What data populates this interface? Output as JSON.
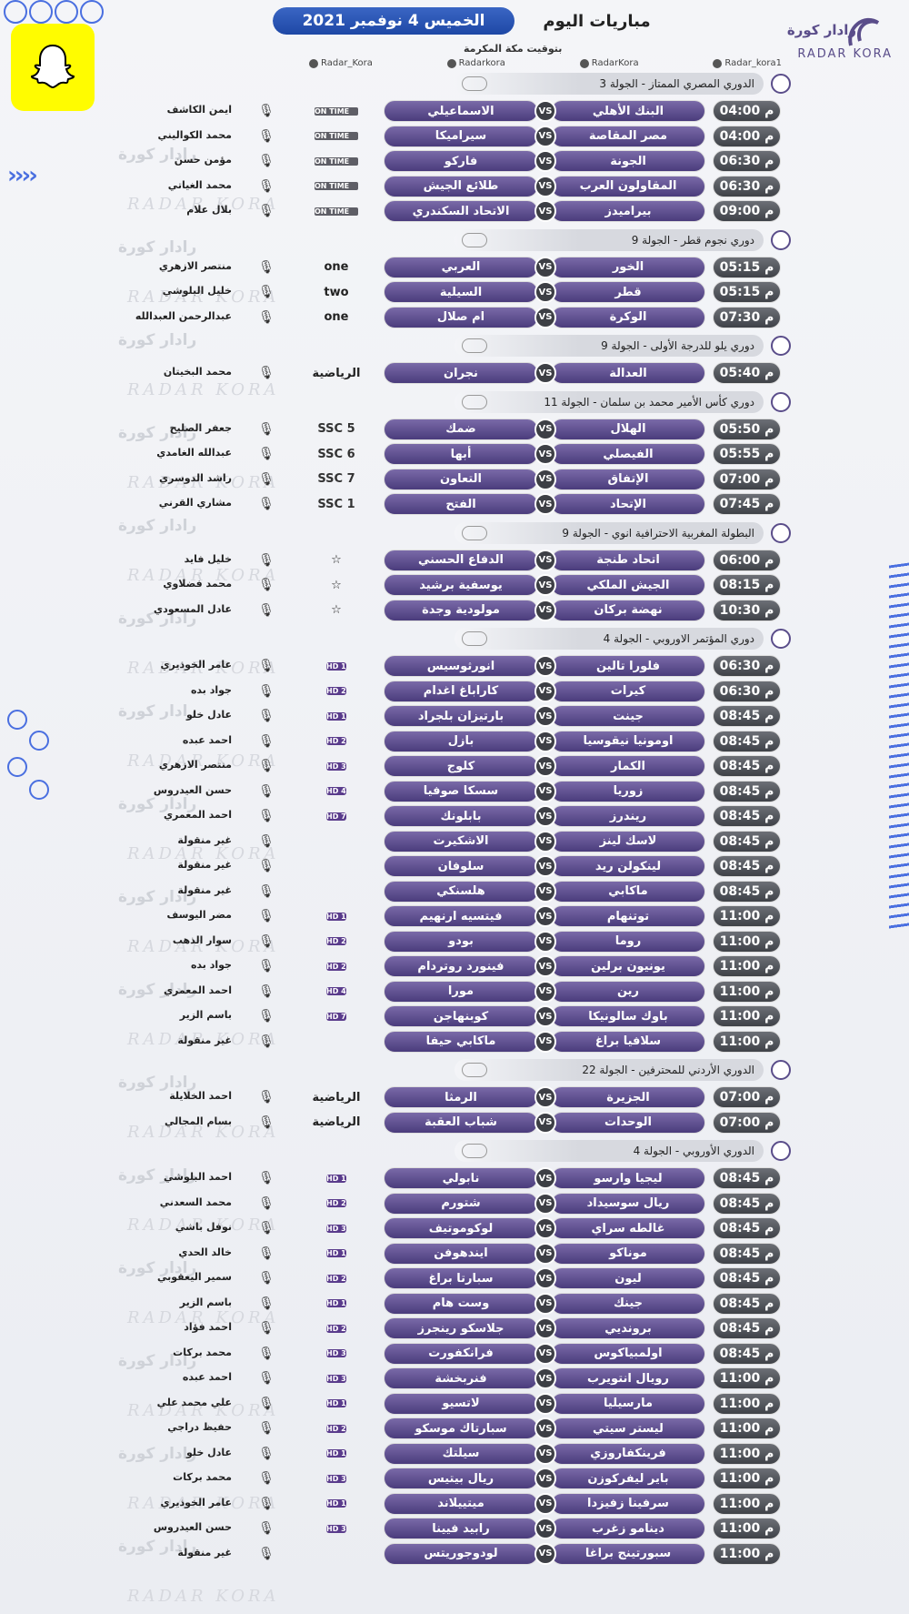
{
  "header": {
    "today": "مباريات اليوم",
    "date": "الخميس 4 نوفمبر 2021",
    "subtitle": "بتوقيت مكة المكرمة"
  },
  "logo": {
    "ar": "رادار كورة",
    "en": "RADAR KORA"
  },
  "watermark": {
    "ar": "رادار كورة",
    "en": "RADAR KORA"
  },
  "socials": [
    "Radar_Kora",
    "Radarkora",
    "RadarKora",
    "Radar_kora1"
  ],
  "vs": "VS",
  "leagues": [
    {
      "name": "الدوري المصري الممتاز - الجولة 3",
      "matches": [
        {
          "time": "04:00 م",
          "home": "البنك الأهلي",
          "away": "الاسماعيلي",
          "channel": "ON TIME",
          "type": "ontime",
          "comm": "ايمن الكاشف"
        },
        {
          "time": "04:00 م",
          "home": "مصر المقاصة",
          "away": "سيراميكا",
          "channel": "ON TIME",
          "type": "ontime",
          "comm": "محمد الكواليني"
        },
        {
          "time": "06:30 م",
          "home": "الجونة",
          "away": "فاركو",
          "channel": "ON TIME",
          "type": "ontime",
          "comm": "مؤمن حسن"
        },
        {
          "time": "06:30 م",
          "home": "المقاولون العرب",
          "away": "طلائع الجيش",
          "channel": "ON TIME",
          "type": "ontime",
          "comm": "محمد الغياتي"
        },
        {
          "time": "09:00 م",
          "home": "بيراميدز",
          "away": "الاتحاد السكندري",
          "channel": "ON TIME",
          "type": "ontime",
          "comm": "بلال علام"
        }
      ]
    },
    {
      "name": "دوري نجوم قطر - الجولة 9",
      "matches": [
        {
          "time": "05:15 م",
          "home": "الخور",
          "away": "العربي",
          "channel": "one",
          "type": "ad",
          "comm": "منتصر الازهري"
        },
        {
          "time": "05:15 م",
          "home": "قطر",
          "away": "السيلية",
          "channel": "two",
          "type": "ad",
          "comm": "خليل البلوشي"
        },
        {
          "time": "07:30 م",
          "home": "الوكرة",
          "away": "ام صلال",
          "channel": "one",
          "type": "ad",
          "comm": "عبدالرحمن العبدالله"
        }
      ]
    },
    {
      "name": "دوري يلو للدرجة الأولى - الجولة 9",
      "matches": [
        {
          "time": "05:40 م",
          "home": "العدالة",
          "away": "نجران",
          "channel": "الرياضية",
          "type": "ad",
          "comm": "محمد البخيتان"
        }
      ]
    },
    {
      "name": "دوري كأس الأمير محمد بن سلمان - الجولة 11",
      "matches": [
        {
          "time": "05:50 م",
          "home": "الهلال",
          "away": "ضمك",
          "channel": "SSC 5",
          "type": "ssc",
          "comm": "جعفر الصليح"
        },
        {
          "time": "05:55 م",
          "home": "الفيصلي",
          "away": "أبها",
          "channel": "SSC 6",
          "type": "ssc",
          "comm": "عبدالله الغامدي"
        },
        {
          "time": "07:00 م",
          "home": "الإتفاق",
          "away": "التعاون",
          "channel": "SSC 7",
          "type": "ssc",
          "comm": "راشد الدوسري"
        },
        {
          "time": "07:45 م",
          "home": "الإتحاد",
          "away": "الفتح",
          "channel": "SSC 1",
          "type": "ssc",
          "comm": "مشاري القرني"
        }
      ]
    },
    {
      "name": "البطولة المغربية الاحترافية انوي - الجولة 9",
      "matches": [
        {
          "time": "06:00 م",
          "home": "اتحاد طنجة",
          "away": "الدفاع الحسني",
          "channel": "☆",
          "type": "ad",
          "comm": "خليل فايد"
        },
        {
          "time": "08:15 م",
          "home": "الجيش الملكي",
          "away": "يوسفية برشيد",
          "channel": "☆",
          "type": "ad",
          "comm": "محمد فضلاوي"
        },
        {
          "time": "10:30 م",
          "home": "نهضة بركان",
          "away": "مولودية وجدة",
          "channel": "☆",
          "type": "ad",
          "comm": "عادل المسعودي"
        }
      ]
    },
    {
      "name": "دوري المؤتمر الاوروبي - الجولة 4",
      "matches": [
        {
          "time": "06:30 م",
          "home": "فلورا تالين",
          "away": "انورثوسيس",
          "channel": "HD 1",
          "type": "bein",
          "comm": "عامر الخوذيري"
        },
        {
          "time": "06:30 م",
          "home": "كيرات",
          "away": "كاراباغ اغدام",
          "channel": "HD 2",
          "type": "bein",
          "comm": "جواد بده"
        },
        {
          "time": "08:45 م",
          "home": "جينت",
          "away": "بارتيزان بلجراد",
          "channel": "HD 1",
          "type": "bein",
          "comm": "عادل خلو"
        },
        {
          "time": "08:45 م",
          "home": "اومونيا نيقوسيا",
          "away": "بازل",
          "channel": "HD 2",
          "type": "bein",
          "comm": "احمد عبده"
        },
        {
          "time": "08:45 م",
          "home": "الكمار",
          "away": "كلوج",
          "channel": "HD 3",
          "type": "bein",
          "comm": "منتصر الازهري"
        },
        {
          "time": "08:45 م",
          "home": "زوريا",
          "away": "سسكا صوفيا",
          "channel": "HD 4",
          "type": "bein",
          "comm": "حسن العيدروس"
        },
        {
          "time": "08:45 م",
          "home": "ريندرز",
          "away": "بابلونك",
          "channel": "HD 7",
          "type": "bein",
          "comm": "احمد المعمري"
        },
        {
          "time": "08:45 م",
          "home": "لاسك لينز",
          "away": "الاشكيرت",
          "channel": "",
          "type": "none",
          "comm": "غير منقولة"
        },
        {
          "time": "08:45 م",
          "home": "لينكولن ريد",
          "away": "سلوفان",
          "channel": "",
          "type": "none",
          "comm": "غير منقولة"
        },
        {
          "time": "08:45 م",
          "home": "ماكابي",
          "away": "هلسنكي",
          "channel": "",
          "type": "none",
          "comm": "غير منقولة"
        },
        {
          "time": "11:00 م",
          "home": "توتنهام",
          "away": "فيتسيه ارنهيم",
          "channel": "HD 1",
          "type": "bein",
          "comm": "مضر اليوسف"
        },
        {
          "time": "11:00 م",
          "home": "روما",
          "away": "بودو",
          "channel": "HD 2",
          "type": "bein",
          "comm": "سوار الذهب"
        },
        {
          "time": "11:00 م",
          "home": "يونيون برلين",
          "away": "فينورد روتردام",
          "channel": "HD 2",
          "type": "bein",
          "comm": "جواد بده"
        },
        {
          "time": "11:00 م",
          "home": "رين",
          "away": "مورا",
          "channel": "HD 4",
          "type": "bein",
          "comm": "احمد المعمري"
        },
        {
          "time": "11:00 م",
          "home": "باوك سالونيكا",
          "away": "كوبنهاجن",
          "channel": "HD 7",
          "type": "bein",
          "comm": "باسم الزير"
        },
        {
          "time": "11:00 م",
          "home": "سلافيا براغ",
          "away": "ماكابي حيفا",
          "channel": "",
          "type": "none",
          "comm": "غير منقولة"
        }
      ]
    },
    {
      "name": "الدوري الأردني للمحترفين - الجولة 22",
      "matches": [
        {
          "time": "07:00 م",
          "home": "الجزيرة",
          "away": "الرمثا",
          "channel": "الرياضية",
          "type": "ad",
          "comm": "احمد الخلايلة"
        },
        {
          "time": "07:00 م",
          "home": "الوحدات",
          "away": "شباب العقبة",
          "channel": "الرياضية",
          "type": "ad",
          "comm": "بسام المجالي"
        }
      ]
    },
    {
      "name": "الدوري الأوروبي - الجولة 4",
      "matches": [
        {
          "time": "08:45 م",
          "home": "ليجيا وارسو",
          "away": "نابولي",
          "channel": "HD 1",
          "type": "bein",
          "comm": "احمد البلوشي"
        },
        {
          "time": "08:45 م",
          "home": "ريال سوسيداد",
          "away": "شتورم",
          "channel": "HD 2",
          "type": "bein",
          "comm": "محمد السعدني"
        },
        {
          "time": "08:45 م",
          "home": "غالطه سراي",
          "away": "لوكوموتيف",
          "channel": "HD 3",
          "type": "bein",
          "comm": "نوفل باشي"
        },
        {
          "time": "08:45 م",
          "home": "موناكو",
          "away": "ايندهوفن",
          "channel": "HD 1",
          "type": "bein",
          "comm": "خالد الحدي"
        },
        {
          "time": "08:45 م",
          "home": "ليون",
          "away": "سبارتا براغ",
          "channel": "HD 2",
          "type": "bein",
          "comm": "سمير اليعقوبي"
        },
        {
          "time": "08:45 م",
          "home": "جينك",
          "away": "وست هام",
          "channel": "HD 1",
          "type": "bein",
          "comm": "باسم الزير"
        },
        {
          "time": "08:45 م",
          "home": "برونديي",
          "away": "جلاسكو رينجرز",
          "channel": "HD 2",
          "type": "bein",
          "comm": "احمد فؤاد"
        },
        {
          "time": "08:45 م",
          "home": "اولمبياكوس",
          "away": "فرانكفورت",
          "channel": "HD 3",
          "type": "bein",
          "comm": "محمد بركات"
        },
        {
          "time": "11:00 م",
          "home": "رويال انتويرب",
          "away": "فنربخشة",
          "channel": "HD 3",
          "type": "bein",
          "comm": "احمد عبده"
        },
        {
          "time": "11:00 م",
          "home": "مارسيليا",
          "away": "لاتسيو",
          "channel": "HD 1",
          "type": "bein",
          "comm": "علي محمد علي"
        },
        {
          "time": "11:00 م",
          "home": "ليستر سيتي",
          "away": "سبارتاك موسكو",
          "channel": "HD 2",
          "type": "bein",
          "comm": "حفيظ دراجي"
        },
        {
          "time": "11:00 م",
          "home": "فرينكفاروزي",
          "away": "سيلتك",
          "channel": "HD 1",
          "type": "bein",
          "comm": "عادل خلو"
        },
        {
          "time": "11:00 م",
          "home": "باير ليفركوزن",
          "away": "ريال بيتيس",
          "channel": "HD 3",
          "type": "bein",
          "comm": "محمد بركات"
        },
        {
          "time": "11:00 م",
          "home": "سرفينا زفيزدا",
          "away": "ميتييلاند",
          "channel": "HD 1",
          "type": "bein",
          "comm": "عامر الخوذيري"
        },
        {
          "time": "11:00 م",
          "home": "دينامو زغرب",
          "away": "رابيد فيينا",
          "channel": "HD 3",
          "type": "bein",
          "comm": "حسن العيدروس"
        },
        {
          "time": "11:00 م",
          "home": "سبورتينج براغا",
          "away": "لودوجوريتس",
          "channel": "",
          "type": "none",
          "comm": "غير منقولة"
        }
      ]
    }
  ]
}
